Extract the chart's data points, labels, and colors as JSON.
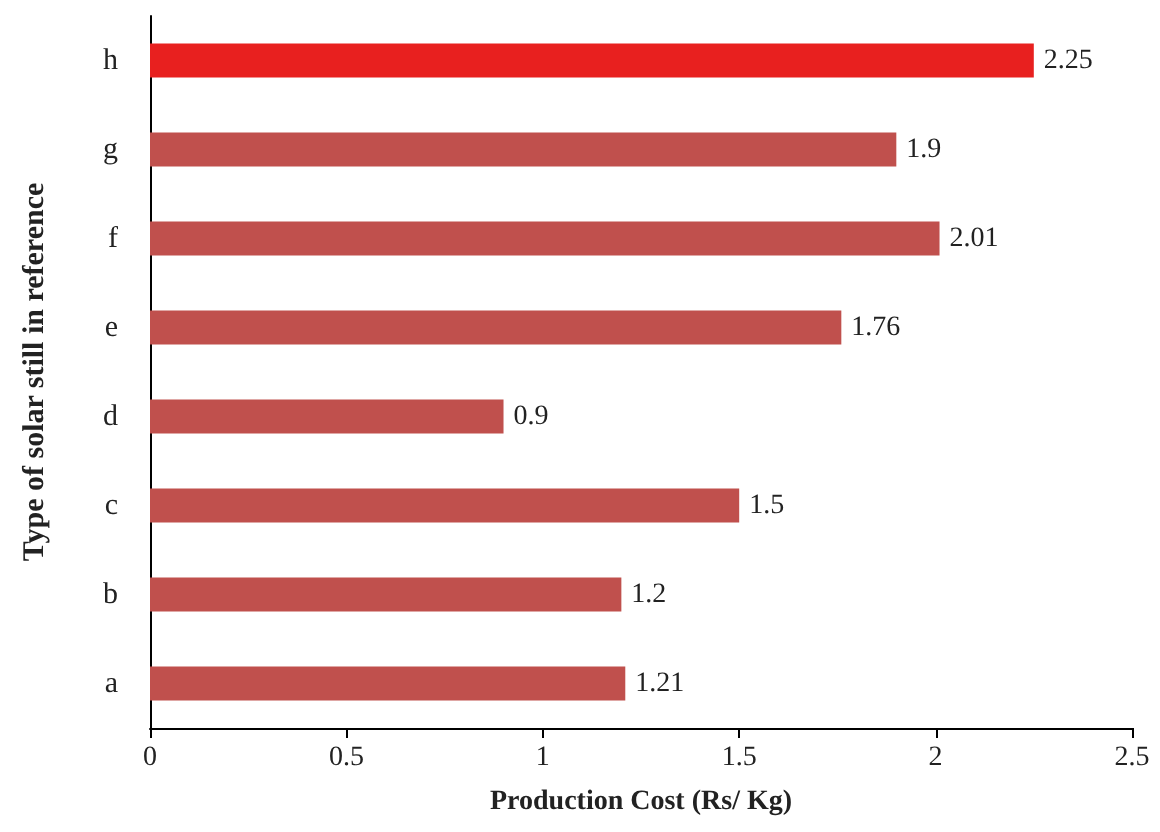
{
  "chart_data": {
    "type": "bar",
    "orientation": "horizontal",
    "xlabel": "Production Cost (Rs/ Kg)",
    "ylabel": "Type of solar still in reference",
    "categories": [
      "h",
      "g",
      "f",
      "e",
      "d",
      "c",
      "b",
      "a"
    ],
    "values": [
      2.25,
      1.9,
      2.01,
      1.76,
      0.9,
      1.5,
      1.2,
      1.21
    ],
    "colors": [
      "#e8201f",
      "#c0504d",
      "#c0504d",
      "#c0504d",
      "#c0504d",
      "#c0504d",
      "#c0504d",
      "#c0504d"
    ],
    "xlim": [
      0,
      2.5
    ],
    "xticks": [
      0,
      0.5,
      1,
      1.5,
      2,
      2.5
    ],
    "data_labels": true
  }
}
